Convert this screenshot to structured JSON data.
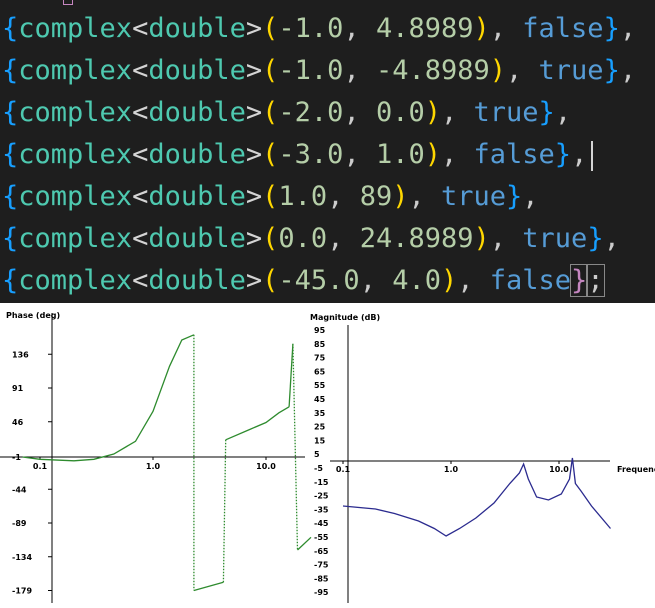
{
  "code_lines": [
    {
      "re": "-1.0",
      "im": "4.8989",
      "flag": "false",
      "end": "},"
    },
    {
      "re": "-1.0",
      "im": "-4.8989",
      "flag": "true",
      "end": "},"
    },
    {
      "re": "-2.0",
      "im": "0.0",
      "flag": "true",
      "end": "},"
    },
    {
      "re": "-3.0",
      "im": "1.0",
      "flag": "false",
      "end": "},"
    },
    {
      "re": "1.0",
      "im": "89",
      "flag": "true",
      "end": "},"
    },
    {
      "re": "0.0",
      "im": "24.8989",
      "flag": "true",
      "end": "},"
    },
    {
      "re": "-45.0",
      "im": "4.0",
      "flag": "false",
      "end": "};"
    }
  ],
  "tokens": {
    "type": "complex",
    "lt": "<",
    "inner": "double",
    "gt": ">",
    "open": "{",
    "paren_open": "(",
    "comma": ", ",
    "paren_close": ")"
  },
  "colors": {
    "background": "#1e1e1e",
    "type": "#4ec9b0",
    "bracket_outer": "#179fff",
    "paren": "#ffd700",
    "number": "#b5cea8",
    "bool": "#569cd6",
    "trace_green": "#2e8b2e",
    "trace_blue": "#2b2b8f"
  },
  "phase_plot": {
    "ylabel": "Phase (deg)",
    "yticks": [
      "136",
      "91",
      "46",
      "-1",
      "-44",
      "-89",
      "-134",
      "-179"
    ],
    "xticks": [
      "0.1",
      "1.0",
      "10.0"
    ]
  },
  "mag_plot": {
    "ylabel": "Magnitude (dB)",
    "yticks": [
      "95",
      "85",
      "75",
      "65",
      "55",
      "45",
      "35",
      "25",
      "15",
      "5",
      "-5",
      "-15",
      "-25",
      "-35",
      "-45",
      "-55",
      "-65",
      "-75",
      "-85",
      "-95"
    ],
    "xticks": [
      "0.1",
      "1.0",
      "10.0"
    ],
    "xlabel": "Frequenc"
  },
  "chart_data": [
    {
      "type": "line",
      "ylabel": "Phase (deg)",
      "xscale": "log",
      "ylim": [
        -179,
        181
      ],
      "series": [
        {
          "segment": 1,
          "style": "solid",
          "x": [
            0.07,
            0.1,
            0.2,
            0.3,
            0.45,
            0.7,
            1.0,
            1.4,
            1.8,
            2.3
          ],
          "y": [
            -1,
            -4,
            -6,
            -4,
            3,
            20,
            60,
            120,
            155,
            162
          ]
        },
        {
          "segment": 2,
          "style": "dotted",
          "x": [
            2.3,
            2.3
          ],
          "y": [
            162,
            -179
          ]
        },
        {
          "segment": 3,
          "style": "solid",
          "x": [
            2.3,
            4.2
          ],
          "y": [
            -179,
            -168
          ]
        },
        {
          "segment": 4,
          "style": "dotted",
          "x": [
            4.2,
            4.4
          ],
          "y": [
            -168,
            22
          ]
        },
        {
          "segment": 5,
          "style": "solid",
          "x": [
            4.4,
            7,
            10,
            13,
            16
          ],
          "y": [
            22,
            35,
            45,
            58,
            66
          ]
        },
        {
          "segment": 6,
          "style": "solid",
          "x": [
            16,
            17.3
          ],
          "y": [
            66,
            150
          ]
        },
        {
          "segment": 7,
          "style": "dotted",
          "x": [
            17.3,
            19
          ],
          "y": [
            150,
            -125
          ]
        },
        {
          "segment": 8,
          "style": "solid",
          "x": [
            19,
            25
          ],
          "y": [
            -125,
            -108
          ]
        }
      ]
    },
    {
      "type": "line",
      "ylabel": "Magnitude (dB)",
      "xlabel": "Frequenc",
      "xscale": "log",
      "ylim": [
        -95,
        95
      ],
      "series": [
        {
          "x": [
            0.1,
            0.2,
            0.3,
            0.5,
            0.7,
            0.9,
            1.2,
            1.7,
            2.5,
            3.5,
            4.3,
            4.7,
            5.2,
            6.2,
            8,
            10.5,
            12.5,
            13.3,
            14.2,
            16,
            20,
            30
          ],
          "y": [
            -30,
            -32,
            -35,
            -40,
            -45,
            -50,
            -45,
            -38,
            -28,
            -15,
            -8,
            -2,
            -12,
            -24,
            -26,
            -22,
            -12,
            2,
            -15,
            -20,
            -30,
            -45
          ]
        }
      ]
    }
  ]
}
